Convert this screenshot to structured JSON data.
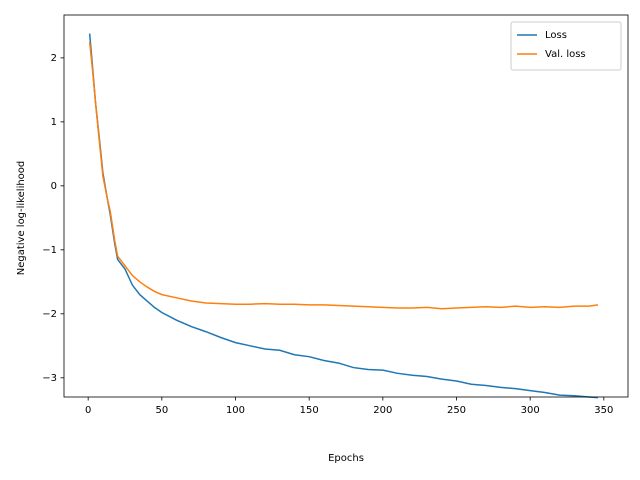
{
  "chart_data": {
    "type": "line",
    "xlabel": "Epochs",
    "ylabel": "Negative log-likelihood",
    "x": [
      1,
      3,
      5,
      8,
      10,
      13,
      15,
      18,
      20,
      25,
      30,
      35,
      40,
      45,
      50,
      60,
      70,
      80,
      90,
      100,
      110,
      120,
      130,
      140,
      150,
      160,
      170,
      180,
      190,
      200,
      210,
      220,
      230,
      240,
      250,
      260,
      270,
      280,
      290,
      300,
      310,
      320,
      330,
      340,
      346
    ],
    "series": [
      {
        "name": "Loss",
        "color": "#1f77b4",
        "values": [
          2.38,
          1.85,
          1.3,
          0.65,
          0.2,
          -0.2,
          -0.45,
          -0.9,
          -1.15,
          -1.3,
          -1.55,
          -1.7,
          -1.8,
          -1.9,
          -1.98,
          -2.1,
          -2.2,
          -2.28,
          -2.37,
          -2.45,
          -2.5,
          -2.55,
          -2.57,
          -2.64,
          -2.67,
          -2.73,
          -2.77,
          -2.84,
          -2.87,
          -2.88,
          -2.93,
          -2.96,
          -2.98,
          -3.02,
          -3.05,
          -3.1,
          -3.12,
          -3.15,
          -3.17,
          -3.2,
          -3.23,
          -3.27,
          -3.28,
          -3.3,
          -3.31
        ]
      },
      {
        "name": "Val. loss",
        "color": "#ff7f0e",
        "values": [
          2.25,
          1.8,
          1.3,
          0.6,
          0.15,
          -0.2,
          -0.4,
          -0.85,
          -1.1,
          -1.25,
          -1.4,
          -1.5,
          -1.58,
          -1.65,
          -1.7,
          -1.75,
          -1.8,
          -1.83,
          -1.84,
          -1.85,
          -1.85,
          -1.84,
          -1.85,
          -1.85,
          -1.86,
          -1.86,
          -1.87,
          -1.88,
          -1.89,
          -1.9,
          -1.91,
          -1.91,
          -1.9,
          -1.92,
          -1.91,
          -1.9,
          -1.89,
          -1.9,
          -1.88,
          -1.9,
          -1.89,
          -1.9,
          -1.88,
          -1.88,
          -1.86
        ]
      }
    ],
    "xlim": [
      -16.4,
      366.4
    ],
    "ylim": [
      -3.3,
      2.67
    ],
    "xticks": [
      0,
      50,
      100,
      150,
      200,
      250,
      300,
      350
    ],
    "yticks": [
      {
        "value": -3,
        "label": "−3"
      },
      {
        "value": -2,
        "label": "−2"
      },
      {
        "value": -1,
        "label": "−1"
      },
      0,
      1,
      2
    ],
    "legend": "upper right",
    "grid": false
  }
}
